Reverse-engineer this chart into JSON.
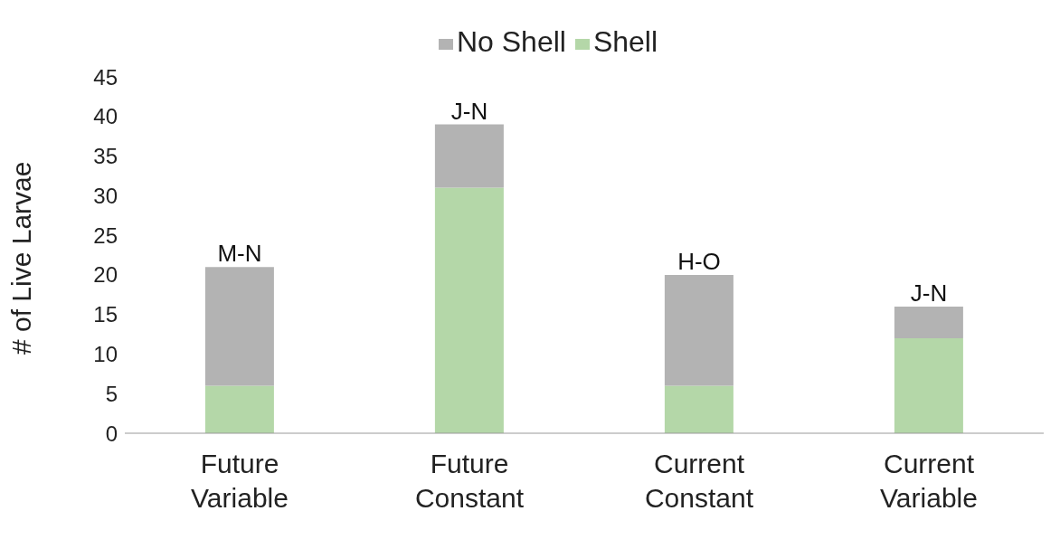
{
  "chart_data": {
    "type": "bar",
    "stacked": true,
    "ylabel": "# of Live Larvae",
    "categories": [
      "Future Variable",
      "Future Constant",
      "Current Constant",
      "Current Variable"
    ],
    "series": [
      {
        "name": "Shell",
        "color": "#b4d7a8",
        "values": [
          6,
          31,
          6,
          12
        ]
      },
      {
        "name": "No Shell",
        "color": "#b3b3b3",
        "values": [
          15,
          8,
          14,
          4
        ]
      }
    ],
    "ylim": [
      0,
      45
    ],
    "yticks": [
      0,
      5,
      10,
      15,
      20,
      25,
      30,
      35,
      40,
      45
    ],
    "grid": false,
    "legend": "top",
    "annotations": [
      {
        "text": "M-N",
        "x": "Future Variable",
        "y": 21
      },
      {
        "text": "J-N",
        "x": "Future Constant",
        "y": 39
      },
      {
        "text": "H-O",
        "x": "Current Constant",
        "y": 20
      },
      {
        "text": "J-N",
        "x": "Current Variable",
        "y": 16
      }
    ]
  }
}
